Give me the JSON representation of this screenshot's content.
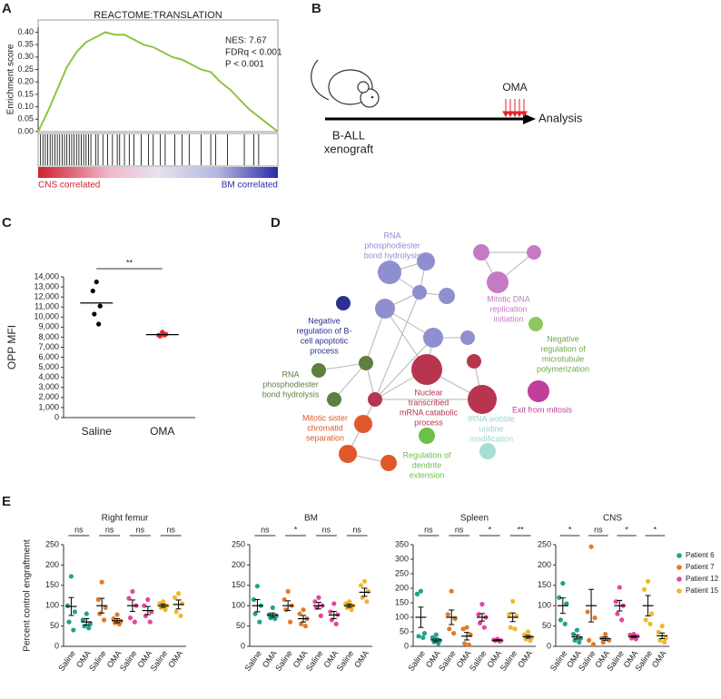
{
  "panel_labels": [
    "A",
    "B",
    "C",
    "D",
    "E"
  ],
  "chart_data": [
    {
      "type": "line",
      "title": "REACTOME:TRANSLATION",
      "ylabel": "Enrichment score",
      "ylim": [
        0,
        0.42
      ],
      "yticks": [
        {
          "value": 0,
          "label": "0.00"
        },
        {
          "value": 0.05,
          "label": "0.05"
        },
        {
          "value": 0.1,
          "label": "0.10"
        },
        {
          "value": 0.15,
          "label": "0.15"
        },
        {
          "value": 0.2,
          "label": "0.20"
        },
        {
          "value": 0.25,
          "label": "0.25"
        },
        {
          "value": 0.3,
          "label": "0.30"
        },
        {
          "value": 0.35,
          "label": "0.35"
        },
        {
          "value": 0.4,
          "label": "0.40"
        }
      ],
      "values": [
        0,
        0.08,
        0.17,
        0.26,
        0.32,
        0.36,
        0.38,
        0.4,
        0.39,
        0.39,
        0.37,
        0.35,
        0.34,
        0.32,
        0.3,
        0.29,
        0.27,
        0.25,
        0.24,
        0.2,
        0.17,
        0.13,
        0.09,
        0.06,
        0.03,
        0
      ],
      "color": "#8cc63f",
      "annotations": [
        "NES: 7.67",
        "FDRq < 0.001",
        "P < 0.001"
      ],
      "hits": [
        1,
        2,
        3,
        4,
        5,
        6,
        7,
        8,
        9,
        10,
        11,
        12,
        13,
        14,
        15,
        16,
        17,
        18,
        19,
        20,
        21,
        22,
        24,
        25,
        27,
        29,
        31,
        33,
        34,
        36,
        38,
        40,
        43,
        46,
        48,
        51,
        53,
        57,
        60,
        63,
        68,
        72,
        74,
        79,
        86,
        90,
        92
      ],
      "gradient_labels": [
        "CNS correlated",
        "BM correlated"
      ]
    },
    {
      "type": "strip",
      "ylabel": "OPP MFI",
      "ylim": [
        0,
        14000
      ],
      "yticks": [
        0,
        {
          "value": 1000,
          "label": "1,000"
        },
        {
          "value": 2000,
          "label": "2,000"
        },
        {
          "value": 3000,
          "label": "3,000"
        },
        {
          "value": 4000,
          "label": "4,000"
        },
        {
          "value": 5000,
          "label": "5,000"
        },
        {
          "value": 6000,
          "label": "6,000"
        },
        {
          "value": 7000,
          "label": "7,000"
        },
        {
          "value": 8000,
          "label": "8,000"
        },
        {
          "value": 9000,
          "label": "9,000"
        },
        {
          "value": 10000,
          "label": "10,000"
        },
        {
          "value": 11000,
          "label": "11,000"
        },
        {
          "value": 12000,
          "label": "12,000"
        },
        {
          "value": 13000,
          "label": "13,000"
        },
        {
          "value": 14000,
          "label": "14,000"
        }
      ],
      "categories": [
        "Saline",
        "OMA"
      ],
      "colors": [
        "#000000",
        "#e3242b"
      ],
      "values": [
        [
          13500,
          12600,
          11100,
          10300,
          9300
        ],
        [
          8500,
          8200,
          8300,
          8100,
          8200
        ]
      ],
      "means": [
        11400,
        8250
      ],
      "significance": "**"
    },
    {
      "type": "strip",
      "ylabel": "Percent control engraftment",
      "categories": [
        "Saline",
        "OMA"
      ],
      "series": [
        {
          "name": "Patient 6",
          "color": "#1fa38a"
        },
        {
          "name": "Patient 7",
          "color": "#e07b2a"
        },
        {
          "name": "Patient 12",
          "color": "#e3479e"
        },
        {
          "name": "Patient 15",
          "color": "#f1b82d"
        }
      ],
      "panels": [
        {
          "title": "Right femur",
          "ylim": [
            0,
            250
          ],
          "yticks": [
            0,
            50,
            100,
            150,
            200,
            250
          ],
          "significance": [
            "ns",
            "ns",
            "ns",
            "ns"
          ],
          "values": [
            [
              172,
              100,
              85,
              60,
              40
            ],
            [
              80,
              65,
              55,
              50,
              45
            ],
            [
              158,
              115,
              95,
              80,
              65
            ],
            [
              78,
              68,
              62,
              58,
              55
            ],
            [
              135,
              118,
              100,
              70,
              60
            ],
            [
              115,
              100,
              85,
              75,
              60
            ],
            [
              110,
              105,
              100,
              95,
              90
            ],
            [
              130,
              120,
              105,
              85,
              75
            ]
          ],
          "means": [
            98,
            60,
            100,
            63,
            100,
            88,
            100,
            103
          ],
          "sems": [
            22,
            8,
            18,
            5,
            14,
            10,
            4,
            11
          ]
        },
        {
          "title": "BM",
          "ylim": [
            0,
            250
          ],
          "yticks": [
            0,
            50,
            100,
            150,
            200,
            250
          ],
          "significance": [
            "ns",
            "*",
            "ns",
            "ns"
          ],
          "values": [
            [
              148,
              115,
              100,
              80,
              60
            ],
            [
              95,
              78,
              75,
              70,
              68
            ],
            [
              135,
              115,
              100,
              90,
              60
            ],
            [
              90,
              80,
              68,
              55,
              50
            ],
            [
              120,
              110,
              100,
              95,
              75
            ],
            [
              105,
              85,
              78,
              65,
              55
            ],
            [
              110,
              105,
              100,
              95,
              90
            ],
            [
              160,
              150,
              135,
              120,
              110
            ]
          ],
          "means": [
            100,
            77,
            100,
            68,
            100,
            77,
            100,
            133
          ],
          "sems": [
            15,
            5,
            12,
            8,
            8,
            9,
            4,
            10
          ]
        },
        {
          "title": "Spleen",
          "ylim": [
            0,
            350
          ],
          "yticks": [
            0,
            50,
            100,
            150,
            200,
            250,
            300,
            350
          ],
          "significance": [
            "ns",
            "ns",
            "*",
            "**"
          ],
          "values": [
            [
              190,
              180,
              45,
              35,
              30
            ],
            [
              40,
              30,
              20,
              15,
              10
            ],
            [
              190,
              110,
              95,
              60,
              45
            ],
            [
              65,
              60,
              40,
              10,
              5
            ],
            [
              145,
              110,
              100,
              80,
              65
            ],
            [
              25,
              22,
              20,
              20,
              18
            ],
            [
              155,
              110,
              105,
              65,
              60
            ],
            [
              50,
              40,
              30,
              25,
              20
            ]
          ],
          "means": [
            100,
            22,
            100,
            35,
            100,
            21,
            100,
            33
          ],
          "sems": [
            35,
            6,
            25,
            13,
            13,
            2,
            15,
            5
          ]
        },
        {
          "title": "CNS",
          "ylim": [
            0,
            250
          ],
          "yticks": [
            0,
            50,
            100,
            150,
            200,
            250
          ],
          "significance": [
            "*",
            "ns",
            "*",
            "*"
          ],
          "values": [
            [
              155,
              120,
              105,
              65,
              55
            ],
            [
              40,
              30,
              20,
              15,
              10
            ],
            [
              245,
              85,
              70,
              15,
              5
            ],
            [
              30,
              20,
              15,
              10
            ],
            [
              145,
              110,
              100,
              80,
              65
            ],
            [
              30,
              28,
              25,
              20,
              18
            ],
            [
              160,
              140,
              80,
              65,
              55
            ],
            [
              50,
              35,
              20,
              15,
              10
            ]
          ],
          "means": [
            100,
            23,
            100,
            19,
            100,
            24,
            100,
            26
          ],
          "sems": [
            19,
            5,
            40,
            4,
            13,
            2,
            25,
            7
          ]
        }
      ]
    }
  ],
  "timeline": {
    "start": [
      "B-ALL",
      "xenograft"
    ],
    "treatment": "OMA",
    "end": "Analysis"
  },
  "network": {
    "labels": [
      [
        "RNA",
        "phosphodiester",
        "bond hydrolysis"
      ],
      [
        "Mitotic DNA",
        "replication",
        "initiation"
      ],
      [
        "Negative",
        "regulation of B-",
        "cell apoptotic",
        "process"
      ],
      [
        "Negative",
        "regulation of",
        "microtubule",
        "polymerization"
      ],
      [
        "RNA",
        "phosphodiester",
        "bond hydrolysis"
      ],
      [
        "Nuclear",
        "transcribed",
        "mRNA catabolic",
        "process"
      ],
      [
        "Exit from mitosis"
      ],
      [
        "Mitotic sister",
        "chromatid",
        "separation"
      ],
      [
        "tRNA wobble",
        "uridine",
        "modification"
      ],
      [
        "Regulation of",
        "dendrite",
        "extension"
      ]
    ]
  }
}
